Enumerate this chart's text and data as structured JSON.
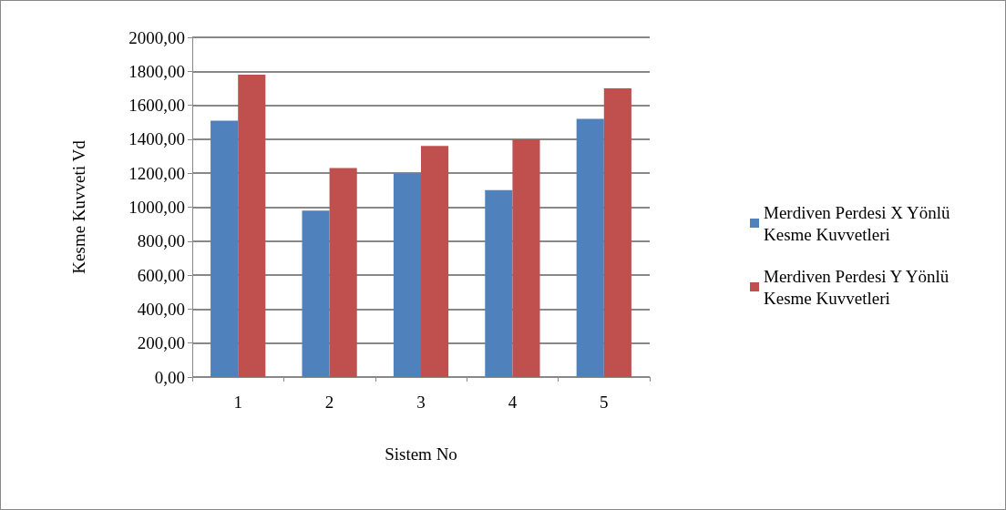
{
  "chart_data": {
    "type": "bar",
    "xlabel": "Sistem No",
    "ylabel": "Kesme Kuvveti Vd",
    "categories": [
      "1",
      "2",
      "3",
      "4",
      "5"
    ],
    "series": [
      {
        "name": "Merdiven Perdesi X Yönlü Kesme Kuvvetleri",
        "color": "#4f81bd",
        "values": [
          1510,
          980,
          1200,
          1100,
          1520
        ]
      },
      {
        "name": "Merdiven Perdesi Y Yönlü Kesme Kuvvetleri",
        "color": "#c0504d",
        "values": [
          1780,
          1230,
          1360,
          1400,
          1700
        ]
      }
    ],
    "ylim": [
      0,
      2000
    ],
    "yticks": [
      {
        "value": 0,
        "label": "0,00"
      },
      {
        "value": 200,
        "label": "200,00"
      },
      {
        "value": 400,
        "label": "400,00"
      },
      {
        "value": 600,
        "label": "600,00"
      },
      {
        "value": 800,
        "label": "800,00"
      },
      {
        "value": 1000,
        "label": "1000,00"
      },
      {
        "value": 1200,
        "label": "1200,00"
      },
      {
        "value": 1400,
        "label": "1400,00"
      },
      {
        "value": 1600,
        "label": "1600,00"
      },
      {
        "value": 1800,
        "label": "1800,00"
      },
      {
        "value": 2000,
        "label": "2000,00"
      }
    ],
    "grid": "y",
    "legend": "right"
  }
}
